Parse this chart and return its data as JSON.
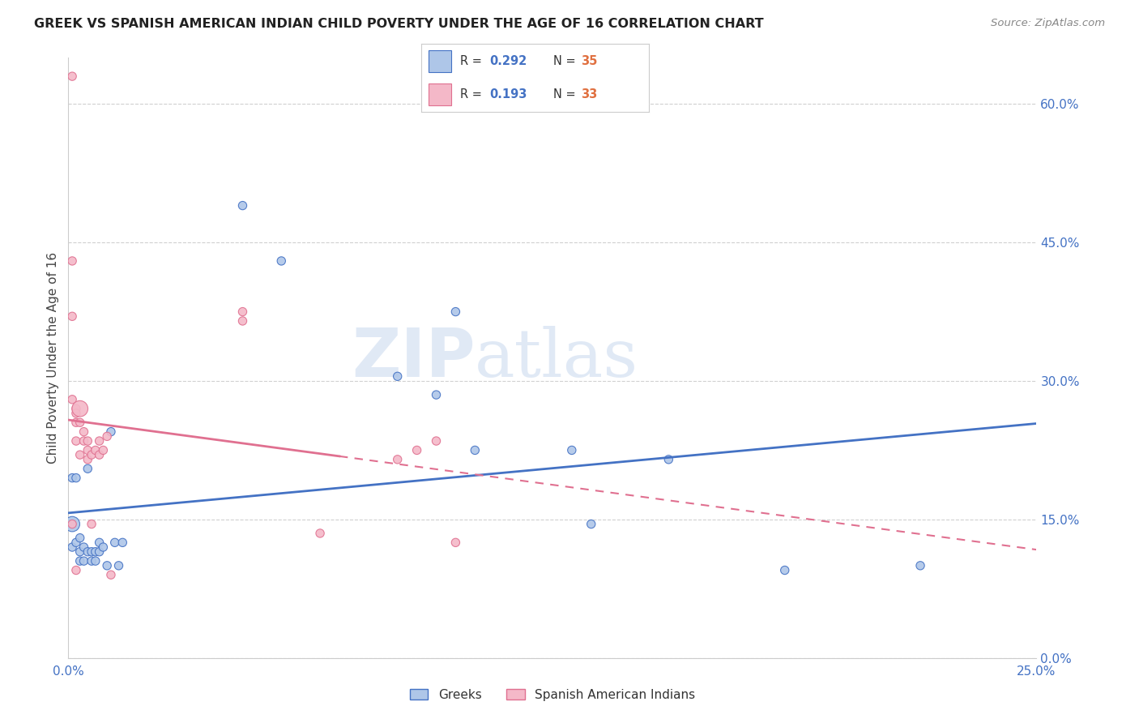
{
  "title": "GREEK VS SPANISH AMERICAN INDIAN CHILD POVERTY UNDER THE AGE OF 16 CORRELATION CHART",
  "source": "Source: ZipAtlas.com",
  "ylabel": "Child Poverty Under the Age of 16",
  "xlim": [
    0.0,
    0.25
  ],
  "ylim": [
    0.0,
    0.65
  ],
  "xtick_positions": [
    0.0,
    0.05,
    0.1,
    0.15,
    0.2,
    0.25
  ],
  "xtick_labels": [
    "0.0%",
    "",
    "",
    "",
    "",
    "25.0%"
  ],
  "ytick_positions": [
    0.0,
    0.15,
    0.3,
    0.45,
    0.6
  ],
  "ytick_labels": [
    "0.0%",
    "15.0%",
    "30.0%",
    "45.0%",
    "60.0%"
  ],
  "watermark_text": "ZIPatlas",
  "greek_color": "#aec6e8",
  "greek_edge_color": "#4472c4",
  "spanish_color": "#f4b8c8",
  "spanish_edge_color": "#e07090",
  "greek_line_color": "#4472c4",
  "spanish_line_color": "#e07090",
  "background_color": "#ffffff",
  "legend_R_greek": "0.292",
  "legend_N_greek": "35",
  "legend_R_spanish": "0.193",
  "legend_N_spanish": "33",
  "greek_x": [
    0.001,
    0.001,
    0.001,
    0.002,
    0.002,
    0.003,
    0.003,
    0.003,
    0.004,
    0.004,
    0.005,
    0.005,
    0.006,
    0.006,
    0.007,
    0.007,
    0.008,
    0.008,
    0.009,
    0.01,
    0.011,
    0.012,
    0.013,
    0.014,
    0.045,
    0.055,
    0.085,
    0.095,
    0.1,
    0.105,
    0.13,
    0.135,
    0.155,
    0.185,
    0.22
  ],
  "greek_y": [
    0.195,
    0.145,
    0.12,
    0.195,
    0.125,
    0.13,
    0.115,
    0.105,
    0.12,
    0.105,
    0.115,
    0.205,
    0.115,
    0.105,
    0.115,
    0.105,
    0.115,
    0.125,
    0.12,
    0.1,
    0.245,
    0.125,
    0.1,
    0.125,
    0.49,
    0.43,
    0.305,
    0.285,
    0.375,
    0.225,
    0.225,
    0.145,
    0.215,
    0.095,
    0.1
  ],
  "greek_sizes": [
    55,
    180,
    55,
    55,
    55,
    55,
    55,
    55,
    55,
    55,
    55,
    55,
    55,
    55,
    55,
    55,
    55,
    55,
    55,
    55,
    55,
    55,
    55,
    55,
    55,
    55,
    55,
    55,
    55,
    55,
    55,
    55,
    55,
    55,
    55
  ],
  "spanish_x": [
    0.001,
    0.001,
    0.001,
    0.001,
    0.001,
    0.002,
    0.002,
    0.002,
    0.002,
    0.002,
    0.003,
    0.003,
    0.003,
    0.004,
    0.004,
    0.005,
    0.005,
    0.005,
    0.006,
    0.006,
    0.007,
    0.008,
    0.008,
    0.009,
    0.01,
    0.011,
    0.045,
    0.045,
    0.065,
    0.085,
    0.09,
    0.095,
    0.1
  ],
  "spanish_y": [
    0.63,
    0.43,
    0.37,
    0.28,
    0.145,
    0.27,
    0.265,
    0.255,
    0.235,
    0.095,
    0.27,
    0.255,
    0.22,
    0.245,
    0.235,
    0.235,
    0.225,
    0.215,
    0.22,
    0.145,
    0.225,
    0.235,
    0.22,
    0.225,
    0.24,
    0.09,
    0.375,
    0.365,
    0.135,
    0.215,
    0.225,
    0.235,
    0.125
  ],
  "spanish_sizes": [
    55,
    55,
    55,
    55,
    55,
    55,
    55,
    55,
    55,
    55,
    200,
    55,
    55,
    55,
    55,
    55,
    55,
    55,
    55,
    55,
    55,
    55,
    55,
    55,
    55,
    55,
    55,
    55,
    55,
    55,
    55,
    55,
    55
  ]
}
